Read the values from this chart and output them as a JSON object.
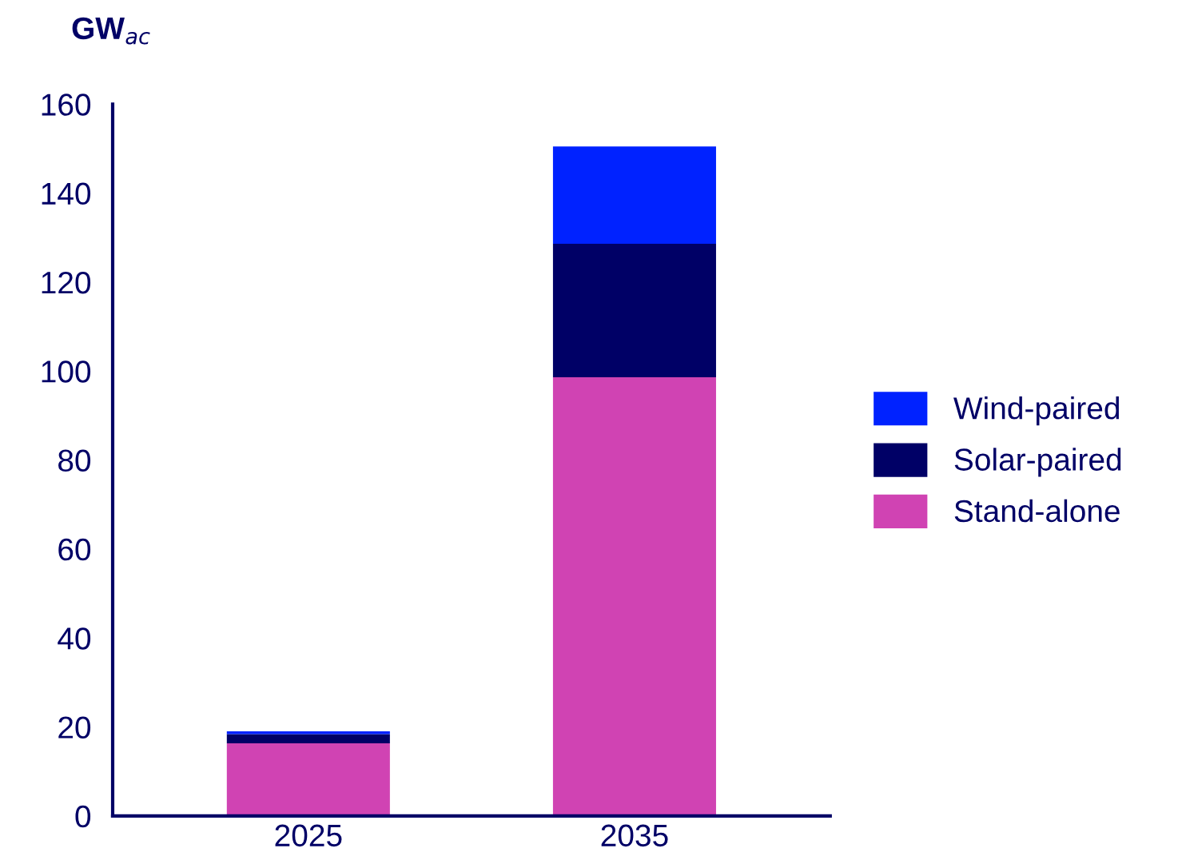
{
  "chart_data": {
    "type": "bar",
    "stacked": true,
    "ylabel": "GW$_{ac}$",
    "categories": [
      "2025",
      "2035"
    ],
    "series": [
      {
        "name": "Stand-alone",
        "color": "#d043b3",
        "values": [
          16.3,
          98.6
        ]
      },
      {
        "name": "Solar-paired",
        "color": "#000066",
        "values": [
          2.1,
          30.0
        ]
      },
      {
        "name": "Wind-paired",
        "color": "#0022ff",
        "values": [
          0.6,
          21.9
        ]
      }
    ],
    "ylim": [
      0,
      160
    ],
    "yticks": [
      0,
      20,
      40,
      60,
      80,
      100,
      120,
      140,
      160
    ],
    "grid": false,
    "legend": "right"
  }
}
